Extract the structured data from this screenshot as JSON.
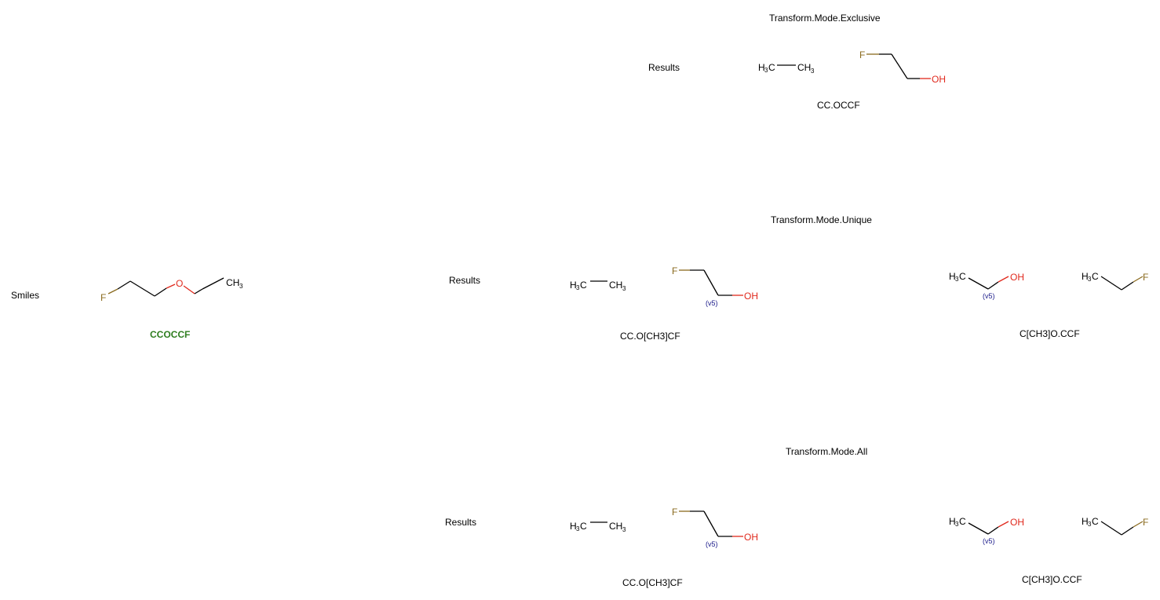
{
  "input": {
    "label": "Smiles",
    "smiles": "CCOCCF",
    "atoms": {
      "f": "F",
      "o": "O",
      "ch3": "CH",
      "sub3": "3"
    }
  },
  "sections": [
    {
      "title": "Transform.Mode.Exclusive",
      "results_label": "Results",
      "product_smiles": "CC.OCCF"
    },
    {
      "title": "Transform.Mode.Unique",
      "results_label": "Results",
      "product_smiles": [
        "CC.O[CH3]CF",
        "C[CH3]O.CCF"
      ]
    },
    {
      "title": "Transform.Mode.All",
      "results_label": "Results",
      "product_smiles": [
        "CC.O[CH3]CF",
        "C[CH3]O.CCF"
      ]
    }
  ],
  "atom_labels": {
    "h": "H",
    "c": "C",
    "ch": "CH",
    "three": "3",
    "f": "F",
    "oh": "OH",
    "valence": "(v5)"
  }
}
